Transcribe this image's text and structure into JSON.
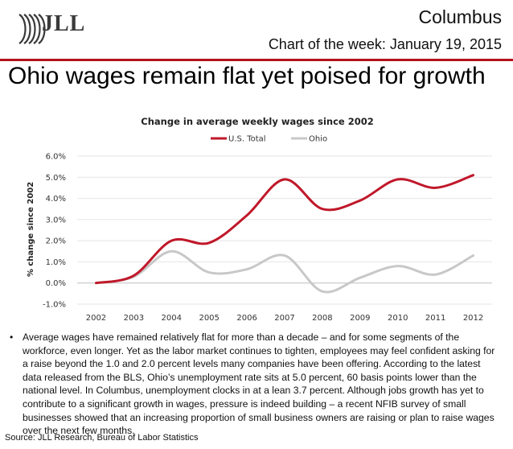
{
  "header": {
    "logo_text": "JLL",
    "region": "Columbus",
    "subtitle": "Chart of the week: January 19, 2015"
  },
  "headline": "Ohio wages remain flat yet poised for growth",
  "colors": {
    "accent": "#b5121b",
    "us_line": "#c0182a",
    "ohio_line": "#c8c8c8"
  },
  "chart_data": {
    "type": "line",
    "title": "Change in average weekly wages since 2002",
    "xlabel": "",
    "ylabel": "% change since 2002",
    "x": [
      "2002",
      "2003",
      "2004",
      "2005",
      "2006",
      "2007",
      "2008",
      "2009",
      "2010",
      "2011",
      "2012"
    ],
    "ylim": [
      -1.0,
      6.0
    ],
    "yticks": [
      "-1.0%",
      "0.0%",
      "1.0%",
      "2.0%",
      "3.0%",
      "4.0%",
      "5.0%",
      "6.0%"
    ],
    "grid": "horizontal",
    "legend": "top",
    "series": [
      {
        "name": "U.S. Total",
        "color": "#c0182a",
        "values": [
          0.0,
          0.35,
          2.0,
          1.9,
          3.2,
          4.9,
          3.5,
          3.9,
          4.9,
          4.5,
          5.1
        ]
      },
      {
        "name": "Ohio",
        "color": "#c8c8c8",
        "values": [
          0.0,
          0.3,
          1.5,
          0.5,
          0.65,
          1.3,
          -0.4,
          0.25,
          0.8,
          0.4,
          1.3
        ]
      }
    ]
  },
  "body_bullet": "Average wages have remained relatively flat for more than a decade – and for some segments of the workforce, even longer. Yet as the labor market continues to tighten, employees may feel confident asking for a raise beyond the 1.0 and 2.0 percent levels many companies have been offering. According to the latest data released from the BLS, Ohio’s unemployment rate sits at 5.0 percent, 60 basis points lower than the national level. In Columbus, unemployment clocks in at a lean 3.7 percent. Although jobs growth has yet to contribute to a significant growth in wages, pressure is indeed building – a recent NFIB survey of small businesses showed that an increasing proportion of small business owners are raising or plan to raise wages over the next few months.",
  "source": "Source: JLL Research, Bureau of Labor Statistics"
}
